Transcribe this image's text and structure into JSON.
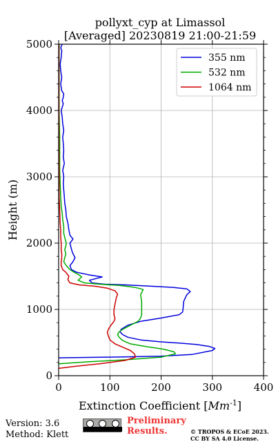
{
  "chart_data": {
    "type": "line",
    "title": "pollyxt_cyp at Limassol",
    "subtitle": "[Averaged] 20230819 21:00-21:59",
    "xlabel": "Extinction Coefficient [",
    "xlabel_unit": "Mm",
    "xlabel_exp": "-1",
    "xlabel_end": "]",
    "ylabel": "Height (m)",
    "xlim": [
      0,
      400
    ],
    "ylim": [
      0,
      5000
    ],
    "xticks": [
      0,
      100,
      200,
      300,
      400
    ],
    "yticks": [
      0,
      1000,
      2000,
      3000,
      4000,
      5000
    ],
    "grid": true,
    "legend_position": "top-right",
    "series": [
      {
        "name": "355 nm",
        "color": "#0000dd",
        "points": [
          [
            0,
            270
          ],
          [
            100,
            280
          ],
          [
            200,
            295
          ],
          [
            260,
            320
          ],
          [
            300,
            380
          ],
          [
            305,
            410
          ],
          [
            295,
            440
          ],
          [
            270,
            470
          ],
          [
            240,
            490
          ],
          [
            200,
            510
          ],
          [
            160,
            540
          ],
          [
            135,
            580
          ],
          [
            125,
            620
          ],
          [
            120,
            660
          ],
          [
            122,
            700
          ],
          [
            135,
            760
          ],
          [
            160,
            820
          ],
          [
            200,
            870
          ],
          [
            235,
            920
          ],
          [
            242,
            960
          ],
          [
            243,
            1020
          ],
          [
            244,
            1120
          ],
          [
            250,
            1220
          ],
          [
            257,
            1270
          ],
          [
            250,
            1310
          ],
          [
            225,
            1330
          ],
          [
            180,
            1350
          ],
          [
            130,
            1370
          ],
          [
            90,
            1380
          ],
          [
            65,
            1400
          ],
          [
            60,
            1440
          ],
          [
            85,
            1490
          ],
          [
            60,
            1520
          ],
          [
            35,
            1560
          ],
          [
            25,
            1600
          ],
          [
            22,
            1660
          ],
          [
            28,
            1720
          ],
          [
            32,
            1780
          ],
          [
            28,
            1840
          ],
          [
            26,
            1880
          ],
          [
            24,
            1940
          ],
          [
            22,
            2000
          ],
          [
            28,
            2060
          ],
          [
            22,
            2120
          ],
          [
            20,
            2200
          ],
          [
            18,
            2300
          ],
          [
            15,
            2400
          ],
          [
            14,
            2500
          ],
          [
            12,
            2600
          ],
          [
            11,
            2700
          ],
          [
            10,
            2800
          ],
          [
            9,
            2900
          ],
          [
            10,
            3000
          ],
          [
            8,
            3100
          ],
          [
            11,
            3200
          ],
          [
            9,
            3300
          ],
          [
            10,
            3400
          ],
          [
            9,
            3500
          ],
          [
            8,
            3600
          ],
          [
            10,
            3700
          ],
          [
            8,
            3800
          ],
          [
            7,
            3900
          ],
          [
            5,
            4000
          ],
          [
            9,
            4100
          ],
          [
            7,
            4150
          ],
          [
            9,
            4200
          ],
          [
            10,
            4250
          ],
          [
            6,
            4300
          ],
          [
            4,
            4400
          ],
          [
            6,
            4500
          ],
          [
            4,
            4600
          ],
          [
            3,
            4700
          ],
          [
            5,
            4800
          ],
          [
            6,
            4900
          ],
          [
            4,
            4950
          ],
          [
            7,
            5000
          ]
        ]
      },
      {
        "name": "532 nm",
        "color": "#00aa00",
        "points": [
          [
            0,
            180
          ],
          [
            60,
            210
          ],
          [
            130,
            240
          ],
          [
            200,
            280
          ],
          [
            228,
            330
          ],
          [
            225,
            360
          ],
          [
            205,
            400
          ],
          [
            170,
            440
          ],
          [
            140,
            480
          ],
          [
            125,
            530
          ],
          [
            118,
            580
          ],
          [
            115,
            620
          ],
          [
            118,
            660
          ],
          [
            125,
            700
          ],
          [
            140,
            760
          ],
          [
            155,
            820
          ],
          [
            160,
            870
          ],
          [
            162,
            920
          ],
          [
            162,
            1020
          ],
          [
            162,
            1120
          ],
          [
            160,
            1220
          ],
          [
            165,
            1300
          ],
          [
            150,
            1330
          ],
          [
            120,
            1360
          ],
          [
            80,
            1380
          ],
          [
            50,
            1400
          ],
          [
            38,
            1440
          ],
          [
            45,
            1490
          ],
          [
            40,
            1520
          ],
          [
            30,
            1560
          ],
          [
            22,
            1600
          ],
          [
            15,
            1660
          ],
          [
            10,
            1720
          ],
          [
            12,
            1780
          ],
          [
            14,
            1840
          ],
          [
            12,
            1900
          ],
          [
            14,
            1960
          ],
          [
            15,
            2000
          ],
          [
            12,
            2080
          ],
          [
            10,
            2150
          ],
          [
            10,
            2250
          ],
          [
            8,
            2350
          ],
          [
            7,
            2450
          ],
          [
            5,
            2550
          ],
          [
            4,
            2700
          ],
          [
            3,
            2900
          ],
          [
            2,
            3100
          ],
          [
            2,
            3300
          ],
          [
            2,
            3600
          ],
          [
            1,
            4000
          ],
          [
            1,
            4500
          ],
          [
            1,
            5000
          ]
        ]
      },
      {
        "name": "1064 nm",
        "color": "#cc0000",
        "points": [
          [
            0,
            110
          ],
          [
            30,
            140
          ],
          [
            80,
            180
          ],
          [
            130,
            230
          ],
          [
            150,
            280
          ],
          [
            148,
            330
          ],
          [
            140,
            380
          ],
          [
            125,
            430
          ],
          [
            110,
            480
          ],
          [
            100,
            540
          ],
          [
            97,
            600
          ],
          [
            95,
            650
          ],
          [
            97,
            700
          ],
          [
            102,
            760
          ],
          [
            108,
            820
          ],
          [
            110,
            860
          ],
          [
            108,
            920
          ],
          [
            108,
            1000
          ],
          [
            110,
            1080
          ],
          [
            112,
            1160
          ],
          [
            115,
            1230
          ],
          [
            110,
            1280
          ],
          [
            95,
            1320
          ],
          [
            70,
            1350
          ],
          [
            40,
            1370
          ],
          [
            22,
            1400
          ],
          [
            18,
            1450
          ],
          [
            20,
            1500
          ],
          [
            14,
            1560
          ],
          [
            8,
            1600
          ],
          [
            5,
            1660
          ],
          [
            5,
            1720
          ],
          [
            6,
            1780
          ],
          [
            6,
            1840
          ],
          [
            5,
            1900
          ],
          [
            5,
            1960
          ],
          [
            5,
            2000
          ],
          [
            4,
            2100
          ],
          [
            4,
            2200
          ],
          [
            3,
            2300
          ],
          [
            2,
            2500
          ],
          [
            1,
            2700
          ],
          [
            1,
            3000
          ],
          [
            0.5,
            3500
          ],
          [
            0.5,
            4000
          ],
          [
            0.5,
            4500
          ],
          [
            0.5,
            5000
          ]
        ]
      }
    ]
  },
  "footer": {
    "version": "Version: 3.6",
    "method": "Method: Klett",
    "preliminary_line1": "Preliminary",
    "preliminary_line2": "Results.",
    "copyright_line1": "© TROPOS & ECoE 2023.",
    "copyright_line2": "CC BY SA 4.0 License.",
    "license_badge": "cc by sa",
    "preliminary_color": "#ee3333"
  }
}
